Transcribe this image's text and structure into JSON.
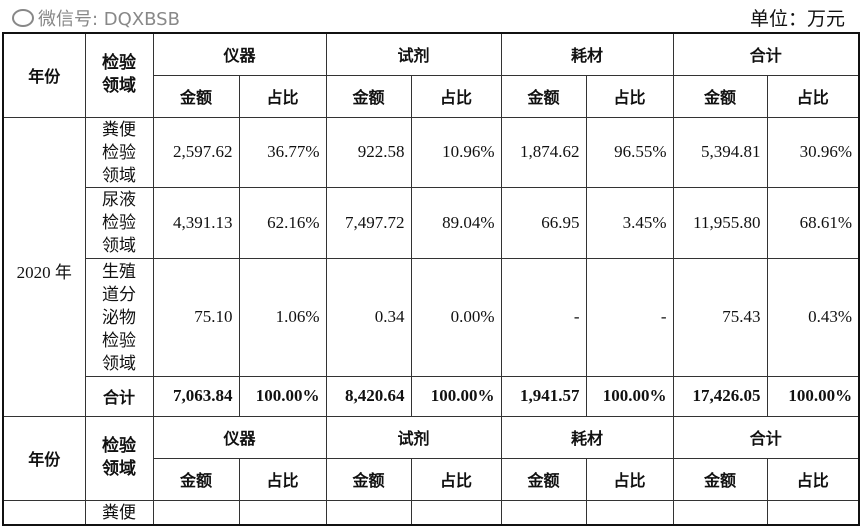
{
  "unit": "单位：万元",
  "header": {
    "year": "年份",
    "domain": "检验领域",
    "groups": [
      "仪器",
      "试剂",
      "耗材",
      "合计"
    ],
    "amount": "金额",
    "ratio": "占比"
  },
  "year_2020": "2020 年",
  "rows": [
    {
      "domain": "粪便检验领域",
      "values": [
        "2,597.62",
        "36.77%",
        "922.58",
        "10.96%",
        "1,874.62",
        "96.55%",
        "5,394.81",
        "30.96%"
      ]
    },
    {
      "domain": "尿液检验领域",
      "values": [
        "4,391.13",
        "62.16%",
        "7,497.72",
        "89.04%",
        "66.95",
        "3.45%",
        "11,955.80",
        "68.61%"
      ]
    },
    {
      "domain": "生殖道分泌物检验领域",
      "values": [
        "75.10",
        "1.06%",
        "0.34",
        "0.00%",
        "-",
        "-",
        "75.43",
        "0.43%"
      ]
    },
    {
      "domain": "合计",
      "values": [
        "7,063.84",
        "100.00%",
        "8,420.64",
        "100.00%",
        "1,941.57",
        "100.00%",
        "17,426.05",
        "100.00%"
      ]
    }
  ],
  "next_row_domain": "粪便",
  "watermark": "微信号: DQXBSB"
}
